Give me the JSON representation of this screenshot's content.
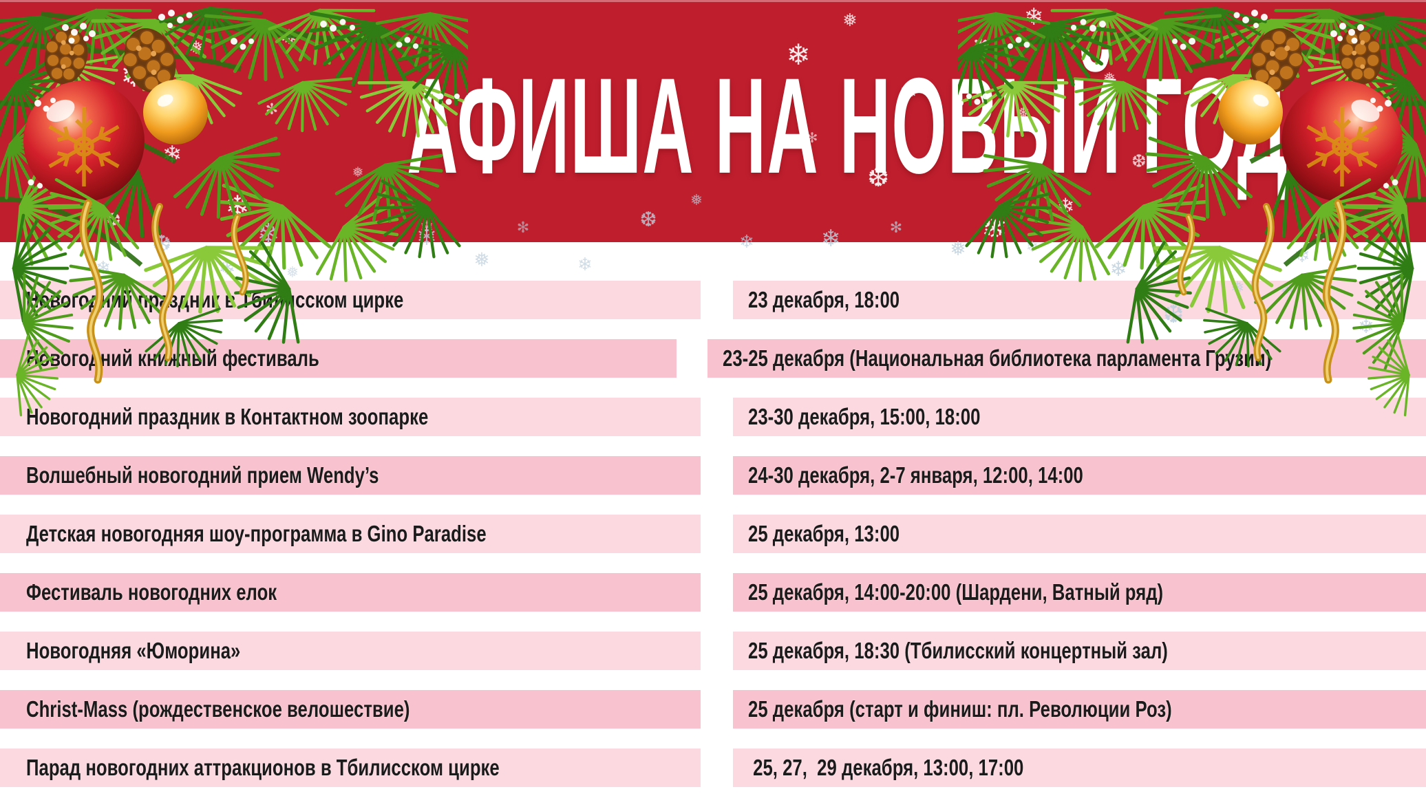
{
  "poster": {
    "title": "АФИША НА НОВЫЙ ГОД",
    "events": [
      {
        "name": "Новогодний праздник в Тбилисском цирке",
        "when": "23 декабря, 18:00"
      },
      {
        "name": "Новогодний книжный фестиваль",
        "when": "23-25 декабря (Национальная библиотека парламента Грузии)"
      },
      {
        "name": "Новогодний праздник в Контактном зоопарке",
        "when": "23-30 декабря, 15:00, 18:00"
      },
      {
        "name": "Волшебный новогодний прием Wendy’s",
        "when": "24-30 декабря, 2-7 января, 12:00, 14:00"
      },
      {
        "name": "Детская новогодняя шоу-программа в Gino Paradise",
        "when": "25 декабря, 13:00"
      },
      {
        "name": "Фестиваль новогодних елок",
        "when": "25 декабря, 14:00-20:00 (Шардени, Ватный ряд)"
      },
      {
        "name": "Новогодняя «Юморина»",
        "when": "25 декабря, 18:30 (Тбилисский концертный зал)"
      },
      {
        "name": "Christ-Mass (рождественское велошествие)",
        "when": "25 декабря (старт и финиш: пл. Революции Роз)"
      },
      {
        "name": "Парад новогодних аттракционов в Тбилисском цирке",
        "when": " 25, 27,  29 декабря, 13:00, 17:00"
      }
    ],
    "colors": {
      "banner_red": "#bf1e2d",
      "row_light": "#fcd8e0",
      "row_dark": "#f8c3ce",
      "ink": "#1b1b1b",
      "title_text": "#ffffff",
      "snow_white": "#ffffff",
      "snow_silver": "#bdcfdd"
    },
    "icons": {
      "snowflake": "❄",
      "snowflake_alt": "❅",
      "snowflake_heavy": "❆",
      "sparkle": "✻"
    }
  }
}
